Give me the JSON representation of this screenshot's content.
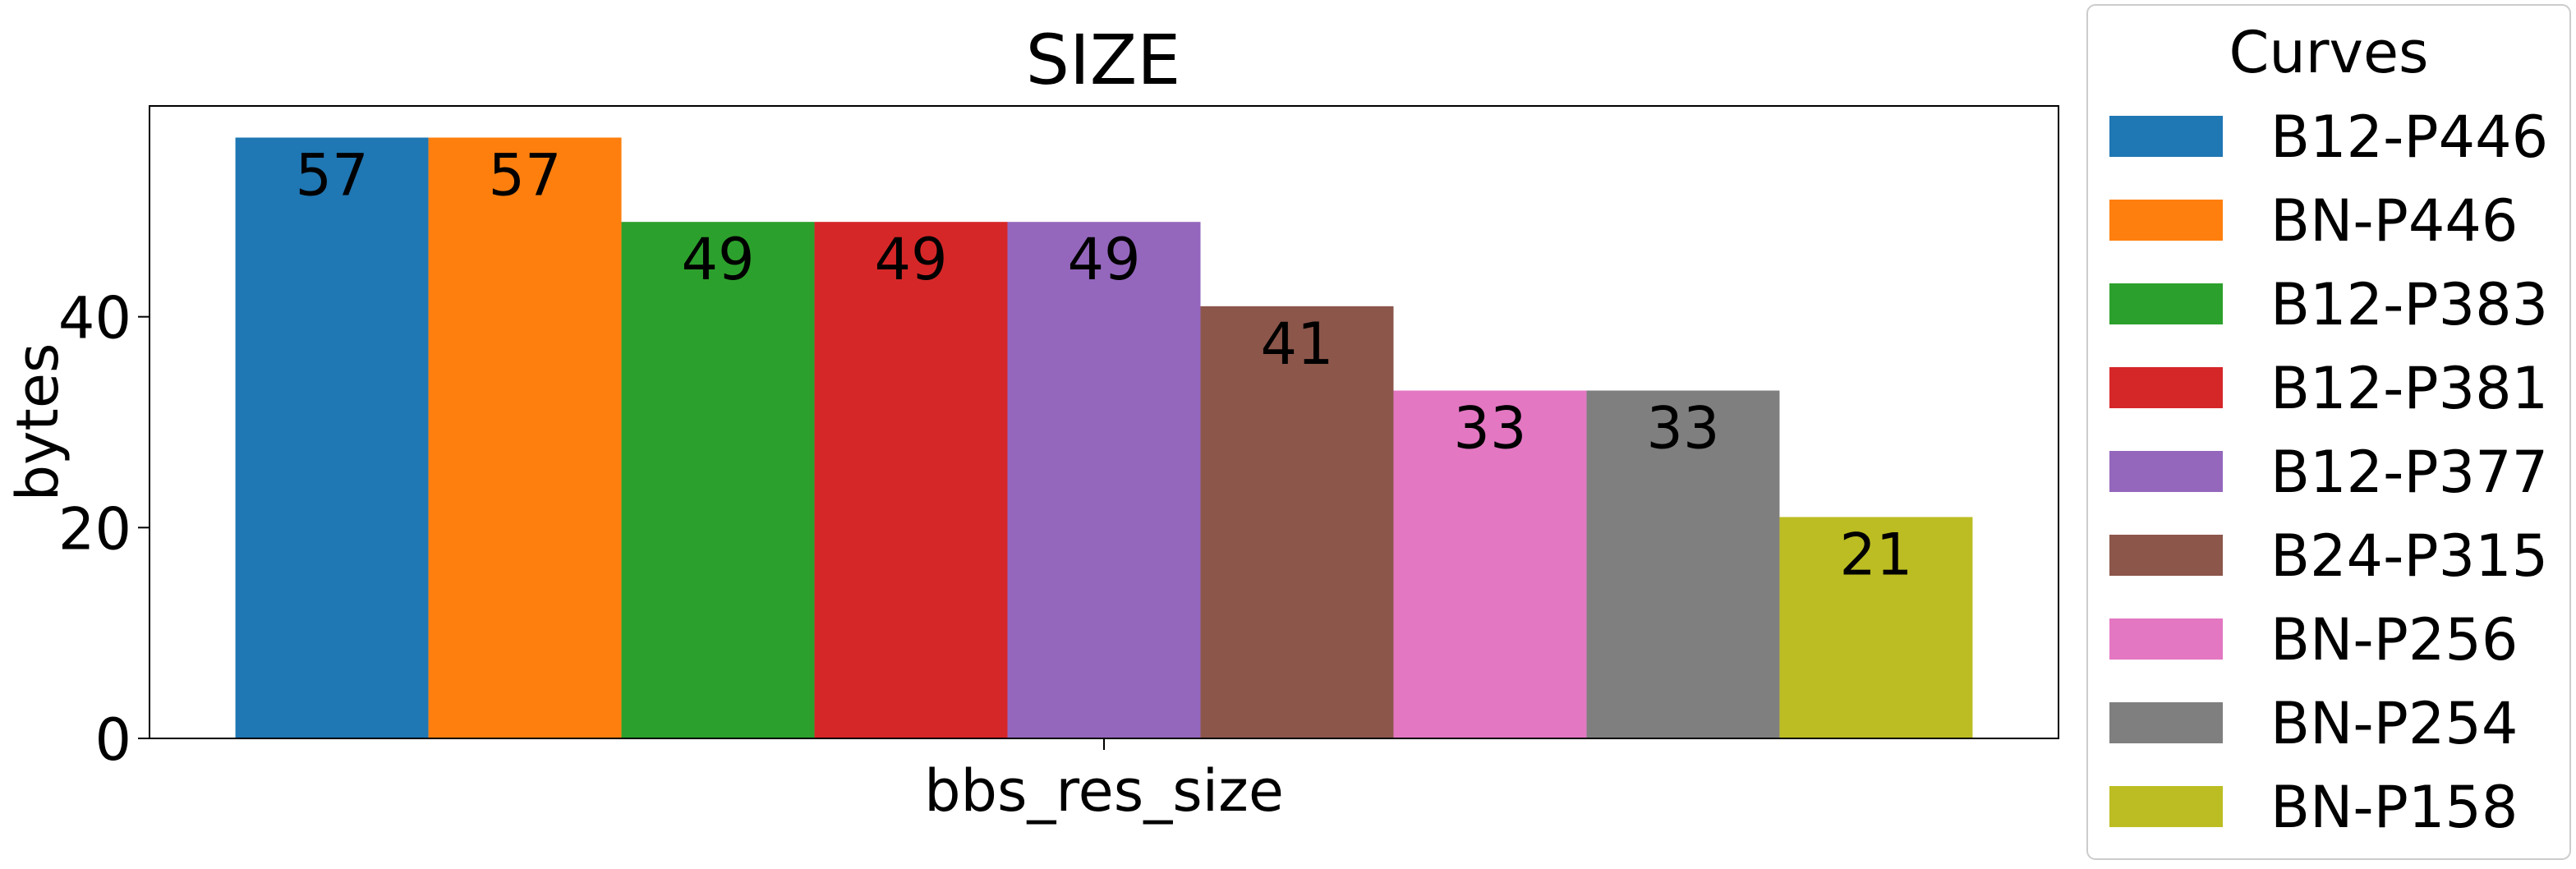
{
  "chart_data": {
    "type": "bar",
    "title": "SIZE",
    "xlabel": "",
    "ylabel": "bytes",
    "categories": [
      "bbs_res_size"
    ],
    "ylim": [
      0,
      60
    ],
    "yticks": [
      0,
      20,
      40
    ],
    "grid": false,
    "legend": {
      "title": "Curves",
      "placement": "outside-right"
    },
    "series": [
      {
        "name": "B12-P446",
        "values": [
          57
        ],
        "color": "#1f77b4"
      },
      {
        "name": "BN-P446",
        "values": [
          57
        ],
        "color": "#ff7f0e"
      },
      {
        "name": "B12-P383",
        "values": [
          49
        ],
        "color": "#2ca02c"
      },
      {
        "name": "B12-P381",
        "values": [
          49
        ],
        "color": "#d62728"
      },
      {
        "name": "B12-P377",
        "values": [
          49
        ],
        "color": "#9467bd"
      },
      {
        "name": "B24-P315",
        "values": [
          41
        ],
        "color": "#8c564b"
      },
      {
        "name": "BN-P256",
        "values": [
          33
        ],
        "color": "#e377c2"
      },
      {
        "name": "BN-P254",
        "values": [
          33
        ],
        "color": "#7f7f7f"
      },
      {
        "name": "BN-P158",
        "values": [
          21
        ],
        "color": "#bcbd22"
      }
    ]
  }
}
